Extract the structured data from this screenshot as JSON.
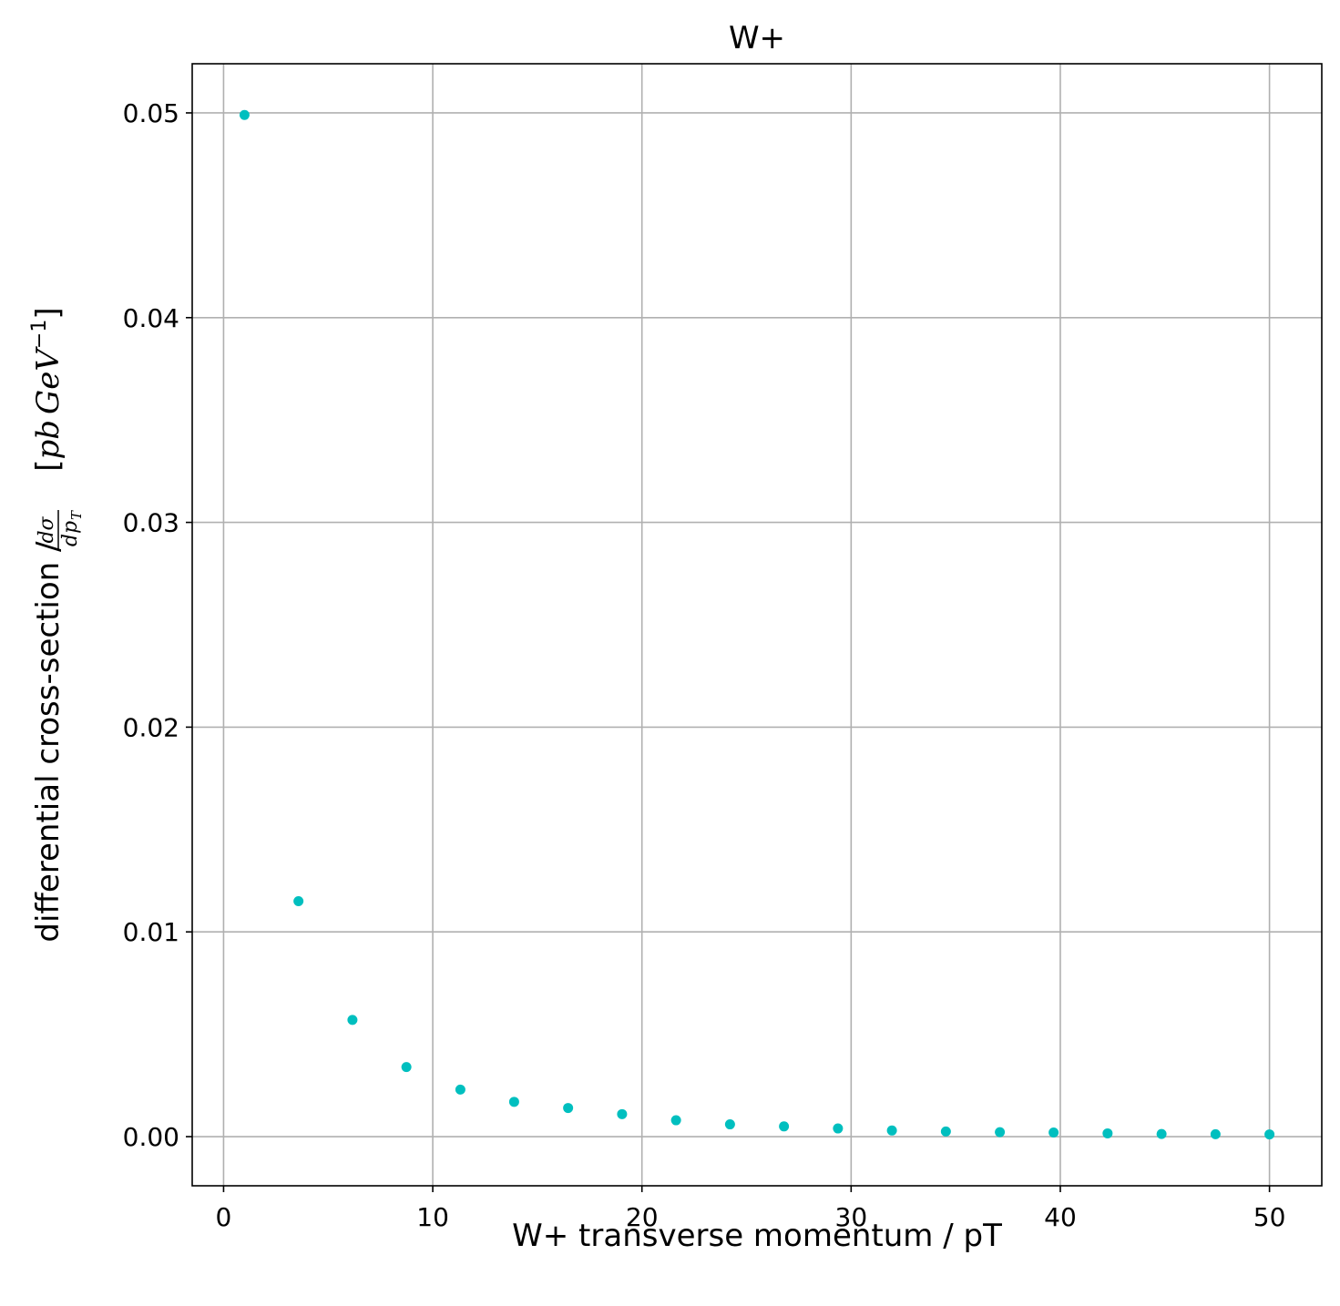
{
  "chart_data": {
    "type": "scatter",
    "title": "W+",
    "xlabel": "W+ transverse momentum / pT",
    "ylabel": {
      "prefix": "differential cross-section / ",
      "frac_num": "dσ",
      "frac_den": "dp",
      "frac_den_sub": "T",
      "unit_open": "[",
      "unit_pb": "pb",
      "unit_gev": "GeV",
      "unit_exp": "−1",
      "unit_close": "]"
    },
    "xlim": [
      -1.5,
      52.5
    ],
    "ylim": [
      -0.0024,
      0.0524
    ],
    "xticks": [
      0,
      10,
      20,
      30,
      40,
      50
    ],
    "xtick_labels": [
      "0",
      "10",
      "20",
      "30",
      "40",
      "50"
    ],
    "yticks": [
      0.0,
      0.01,
      0.02,
      0.03,
      0.04,
      0.05
    ],
    "ytick_labels": [
      "0.00",
      "0.01",
      "0.02",
      "0.03",
      "0.04",
      "0.05"
    ],
    "grid": true,
    "marker_color": "#00bfbf",
    "x": [
      1.0,
      3.58,
      6.16,
      8.74,
      11.32,
      13.89,
      16.47,
      19.05,
      21.63,
      24.21,
      26.79,
      29.37,
      31.95,
      34.53,
      37.11,
      39.68,
      42.26,
      44.84,
      47.42,
      50.0
    ],
    "y": [
      0.0499,
      0.0115,
      0.0057,
      0.0034,
      0.0023,
      0.0017,
      0.0014,
      0.0011,
      0.0008,
      0.0006,
      0.0005,
      0.0004,
      0.0003,
      0.00025,
      0.00022,
      0.0002,
      0.00016,
      0.00013,
      0.00012,
      0.00011
    ]
  }
}
